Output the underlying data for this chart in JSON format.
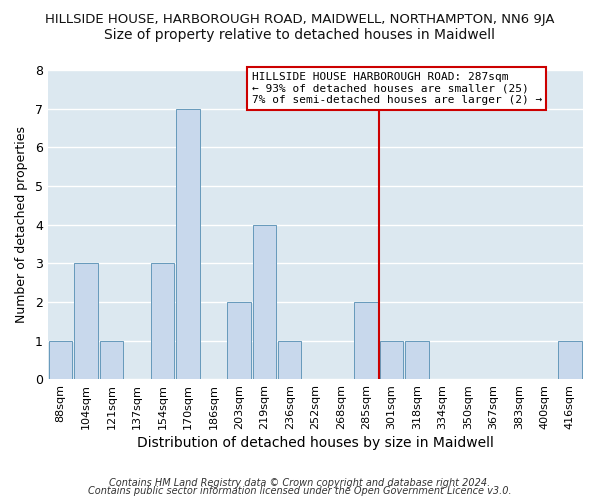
{
  "title": "HILLSIDE HOUSE, HARBOROUGH ROAD, MAIDWELL, NORTHAMPTON, NN6 9JA",
  "subtitle": "Size of property relative to detached houses in Maidwell",
  "xlabel": "Distribution of detached houses by size in Maidwell",
  "ylabel": "Number of detached properties",
  "bar_labels": [
    "88sqm",
    "104sqm",
    "121sqm",
    "137sqm",
    "154sqm",
    "170sqm",
    "186sqm",
    "203sqm",
    "219sqm",
    "236sqm",
    "252sqm",
    "268sqm",
    "285sqm",
    "301sqm",
    "318sqm",
    "334sqm",
    "350sqm",
    "367sqm",
    "383sqm",
    "400sqm",
    "416sqm"
  ],
  "bar_values": [
    1,
    3,
    1,
    0,
    3,
    7,
    0,
    2,
    4,
    1,
    0,
    0,
    2,
    1,
    1,
    0,
    0,
    0,
    0,
    0,
    1
  ],
  "bar_color": "#c8d8ec",
  "bar_edge_color": "#6699bb",
  "vline_color": "#cc0000",
  "annotation_box_text": "HILLSIDE HOUSE HARBOROUGH ROAD: 287sqm\n← 93% of detached houses are smaller (25)\n7% of semi-detached houses are larger (2) →",
  "ylim": [
    0,
    8
  ],
  "footnote_line1": "Contains HM Land Registry data © Crown copyright and database right 2024.",
  "footnote_line2": "Contains public sector information licensed under the Open Government Licence v3.0.",
  "figure_bg": "#ffffff",
  "plot_bg": "#dce8f0",
  "grid_color": "#ffffff",
  "title_fontsize": 9.5,
  "subtitle_fontsize": 10,
  "xlabel_fontsize": 10,
  "ylabel_fontsize": 9,
  "tick_fontsize": 8,
  "annot_fontsize": 8,
  "footnote_fontsize": 7
}
